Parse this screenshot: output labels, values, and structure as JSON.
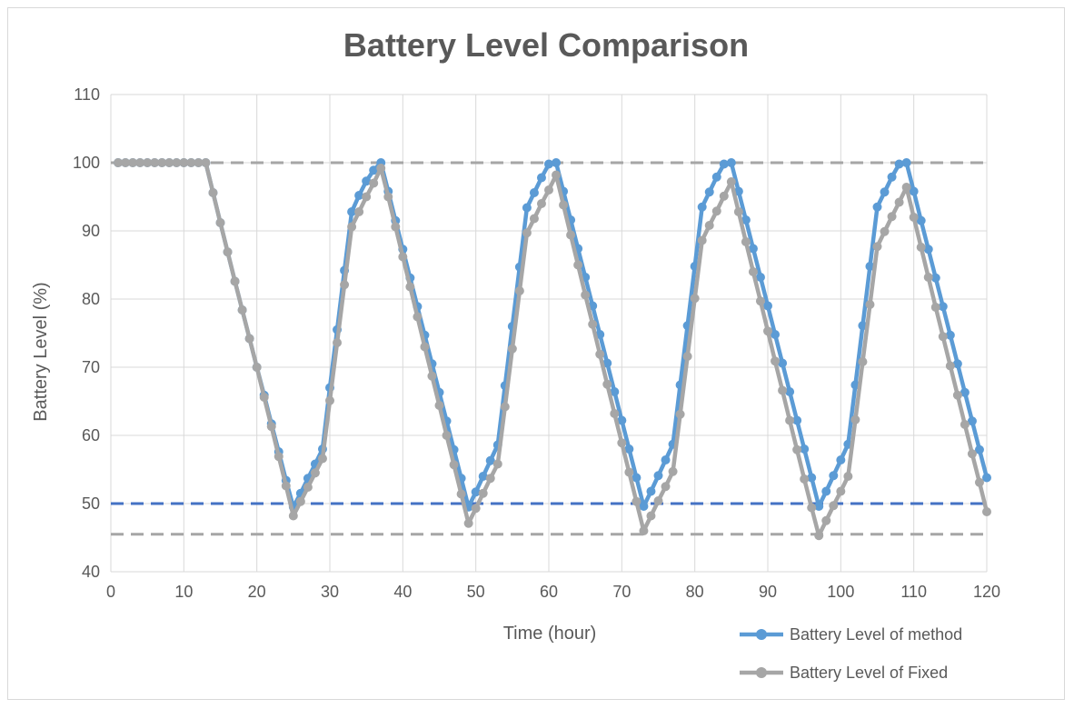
{
  "chart_data": {
    "type": "line",
    "title": "Battery Level Comparison",
    "xlabel": "Time (hour)",
    "ylabel": "Battery Level (%)",
    "xlim": [
      0,
      120
    ],
    "ylim": [
      40,
      110
    ],
    "xticks": [
      0,
      10,
      20,
      30,
      40,
      50,
      60,
      70,
      80,
      90,
      100,
      110,
      120
    ],
    "yticks": [
      40,
      50,
      60,
      70,
      80,
      90,
      100,
      110
    ],
    "grid": true,
    "legend_position": "bottom-right",
    "reference_lines": [
      {
        "y": 100,
        "color": "#a6a6a6",
        "style": "dashed"
      },
      {
        "y": 50,
        "color": "#4472c4",
        "style": "dashed"
      },
      {
        "y": 45.5,
        "color": "#a6a6a6",
        "style": "dashed"
      }
    ],
    "series": [
      {
        "name": "Battery Level of method",
        "color": "#5b9bd5",
        "x": [
          1,
          2,
          3,
          4,
          5,
          6,
          7,
          8,
          9,
          10,
          11,
          12,
          13,
          14,
          15,
          16,
          17,
          18,
          19,
          20,
          21,
          22,
          23,
          24,
          25,
          26,
          27,
          28,
          29,
          30,
          31,
          32,
          33,
          34,
          35,
          36,
          37,
          38,
          39,
          40,
          41,
          42,
          43,
          44,
          45,
          46,
          47,
          48,
          49,
          50,
          51,
          52,
          53,
          54,
          55,
          56,
          57,
          58,
          59,
          60,
          61,
          62,
          63,
          64,
          65,
          66,
          67,
          68,
          69,
          70,
          71,
          72,
          73,
          74,
          75,
          76,
          77,
          78,
          79,
          80,
          81,
          82,
          83,
          84,
          85,
          86,
          87,
          88,
          89,
          90,
          91,
          92,
          93,
          94,
          95,
          96,
          97,
          98,
          99,
          100,
          101,
          102,
          103,
          104,
          105,
          106,
          107,
          108,
          109,
          110,
          111,
          112,
          113,
          114,
          115,
          116,
          117,
          118,
          119,
          120
        ],
        "values": [
          100,
          100,
          100,
          100,
          100,
          100,
          100,
          100,
          100,
          100,
          100,
          100,
          100,
          95.6,
          91.2,
          86.9,
          82.6,
          78.4,
          74.2,
          70,
          65.9,
          61.7,
          57.6,
          53.4,
          49.5,
          51.5,
          53.7,
          55.8,
          58,
          67,
          75.5,
          84.2,
          92.8,
          95.2,
          97.3,
          98.9,
          100,
          95.8,
          91.5,
          87.3,
          83.1,
          78.9,
          74.7,
          70.5,
          66.3,
          62.1,
          57.9,
          53.7,
          49.5,
          51.7,
          54,
          56.3,
          58.6,
          67.3,
          76,
          84.7,
          93.4,
          95.6,
          97.8,
          99.8,
          100,
          95.8,
          91.6,
          87.4,
          83.2,
          79,
          74.8,
          70.6,
          66.4,
          62.2,
          58,
          53.8,
          49.6,
          51.8,
          54.1,
          56.4,
          58.7,
          67.4,
          76.1,
          84.8,
          93.5,
          95.7,
          97.9,
          99.8,
          100,
          95.8,
          91.6,
          87.4,
          83.2,
          79,
          74.8,
          70.6,
          66.4,
          62.2,
          58,
          53.8,
          49.6,
          51.8,
          54.1,
          56.4,
          58.7,
          67.4,
          76.1,
          84.8,
          93.5,
          95.7,
          97.9,
          99.8,
          100,
          95.8,
          91.5,
          87.3,
          83.1,
          78.9,
          74.7,
          70.5,
          66.3,
          62.1,
          57.9,
          53.8
        ]
      },
      {
        "name": "Battery Level of Fixed",
        "color": "#a6a6a6",
        "x": [
          1,
          2,
          3,
          4,
          5,
          6,
          7,
          8,
          9,
          10,
          11,
          12,
          13,
          14,
          15,
          16,
          17,
          18,
          19,
          20,
          21,
          22,
          23,
          24,
          25,
          26,
          27,
          28,
          29,
          30,
          31,
          32,
          33,
          34,
          35,
          36,
          37,
          38,
          39,
          40,
          41,
          42,
          43,
          44,
          45,
          46,
          47,
          48,
          49,
          50,
          51,
          52,
          53,
          54,
          55,
          56,
          57,
          58,
          59,
          60,
          61,
          62,
          63,
          64,
          65,
          66,
          67,
          68,
          69,
          70,
          71,
          72,
          73,
          74,
          75,
          76,
          77,
          78,
          79,
          80,
          81,
          82,
          83,
          84,
          85,
          86,
          87,
          88,
          89,
          90,
          91,
          92,
          93,
          94,
          95,
          96,
          97,
          98,
          99,
          100,
          101,
          102,
          103,
          104,
          105,
          106,
          107,
          108,
          109,
          110,
          111,
          112,
          113,
          114,
          115,
          116,
          117,
          118,
          119,
          120
        ],
        "values": [
          100,
          100,
          100,
          100,
          100,
          100,
          100,
          100,
          100,
          100,
          100,
          100,
          100,
          95.6,
          91.2,
          86.9,
          82.6,
          78.4,
          74.2,
          70,
          65.6,
          61.3,
          56.9,
          52.6,
          48.2,
          50.3,
          52.4,
          54.5,
          56.6,
          65.1,
          73.6,
          82.1,
          90.6,
          92.8,
          95,
          97,
          99.2,
          95,
          90.6,
          86.2,
          81.8,
          77.4,
          73,
          68.7,
          64.4,
          60,
          55.7,
          51.4,
          47.1,
          49.3,
          51.5,
          53.7,
          55.8,
          64.2,
          72.7,
          81.2,
          89.7,
          91.8,
          94,
          96,
          98.2,
          93.8,
          89.4,
          85,
          80.6,
          76.3,
          71.9,
          67.5,
          63.2,
          58.9,
          54.6,
          50.3,
          46,
          48.2,
          50.4,
          52.5,
          54.7,
          63.1,
          71.6,
          80.1,
          88.6,
          90.8,
          92.9,
          95.1,
          97.2,
          92.8,
          88.4,
          84,
          79.7,
          75.3,
          70.9,
          66.6,
          62.2,
          57.9,
          53.6,
          49.4,
          45.3,
          47.5,
          49.7,
          51.8,
          54,
          62.3,
          70.8,
          79.2,
          87.7,
          89.9,
          92.1,
          94.2,
          96.4,
          92,
          87.6,
          83.2,
          78.8,
          74.5,
          70.2,
          65.9,
          61.6,
          57.3,
          53.1,
          48.8
        ]
      }
    ]
  }
}
